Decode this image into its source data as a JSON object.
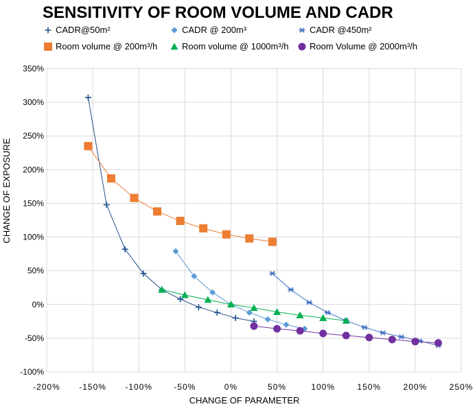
{
  "chart_data": {
    "type": "scatter",
    "title": "SENSITIVITY OF ROOM VOLUME AND CADR",
    "xlabel": "CHANGE OF PARAMETER",
    "ylabel": "CHANGE OF EXPOSURE",
    "xlim": [
      -200,
      250
    ],
    "ylim": [
      -100,
      350
    ],
    "x_ticks": [
      -200,
      -150,
      -100,
      -50,
      0,
      50,
      100,
      150,
      200,
      250
    ],
    "y_ticks": [
      -100,
      -50,
      0,
      50,
      100,
      150,
      200,
      250,
      300,
      350
    ],
    "x_tick_labels": [
      "-200%",
      "-150%",
      "-100%",
      "-50%",
      "0%",
      "50%",
      "100%",
      "150%",
      "200%",
      "250%"
    ],
    "y_tick_labels": [
      "-100%",
      "-50%",
      "0%",
      "50%",
      "100%",
      "150%",
      "200%",
      "250%",
      "300%",
      "350%"
    ],
    "grid": "vertical and horizontal gridlines",
    "legend_position": "top",
    "series": [
      {
        "name": "CADR@50m²",
        "marker": "plus",
        "color": "#1f4e8c",
        "x": [
          -155,
          -135,
          -115,
          -95,
          -75,
          -55,
          -35,
          -15,
          5,
          25
        ],
        "y": [
          307,
          148,
          82,
          46,
          22,
          8,
          -4,
          -12,
          -20,
          -25
        ]
      },
      {
        "name": "CADR @ 200m³",
        "marker": "diamond",
        "color": "#5b9bd5",
        "x": [
          -60,
          -40,
          -20,
          0,
          20,
          40,
          60,
          80
        ],
        "y": [
          79,
          42,
          18,
          0,
          -12,
          -22,
          -30,
          -36
        ]
      },
      {
        "name": "CADR @450m²",
        "marker": "star",
        "color": "#4472c4",
        "x": [
          45,
          65,
          85,
          105,
          125,
          145,
          165,
          185,
          205,
          225
        ],
        "y": [
          46,
          22,
          3,
          -12,
          -24,
          -34,
          -42,
          -48,
          -54,
          -61
        ]
      },
      {
        "name": "Room volume @ 200m³/h",
        "marker": "square",
        "color": "#ed7d31",
        "x": [
          -155,
          -130,
          -105,
          -80,
          -55,
          -30,
          -5,
          20,
          45
        ],
        "y": [
          235,
          187,
          158,
          138,
          124,
          113,
          104,
          98,
          93
        ]
      },
      {
        "name": "Room volume @ 1000m³/h",
        "marker": "triangle",
        "color": "#00b050",
        "x": [
          -75,
          -50,
          -25,
          0,
          25,
          50,
          75,
          100,
          125
        ],
        "y": [
          22,
          14,
          7,
          0,
          -5,
          -11,
          -16,
          -20,
          -24
        ]
      },
      {
        "name": "Room Volume @ 2000m³/h",
        "marker": "circle",
        "color": "#7030a0",
        "x": [
          25,
          50,
          75,
          100,
          125,
          150,
          175,
          200,
          225
        ],
        "y": [
          -32,
          -36,
          -39,
          -43,
          -46,
          -49,
          -52,
          -55,
          -57
        ]
      }
    ]
  }
}
